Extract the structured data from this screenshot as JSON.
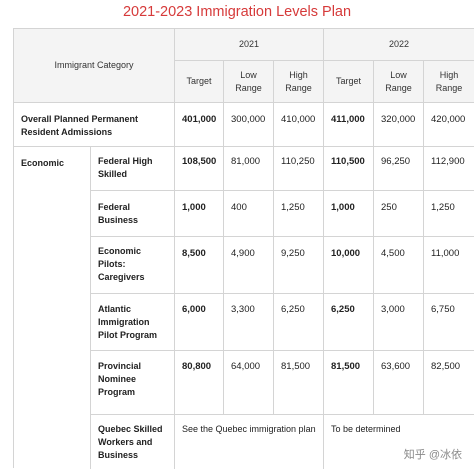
{
  "title": "2021-2023 Immigration Levels Plan",
  "header": {
    "category": "Immigrant Category",
    "year_2021": "2021",
    "year_2022": "2022",
    "target": "Target",
    "low": "Low Range",
    "high": "High Range"
  },
  "overall": {
    "label": "Overall Planned Permanent Resident Admissions",
    "t2021": "401,000",
    "l2021": "300,000",
    "h2021": "410,000",
    "t2022": "411,000",
    "l2022": "320,000",
    "h2022": "420,000"
  },
  "economic": {
    "group": "Economic",
    "rows": [
      {
        "label": "Federal High Skilled",
        "t2021": "108,500",
        "l2021": "81,000",
        "h2021": "110,250",
        "t2022": "110,500",
        "l2022": "96,250",
        "h2022": "112,900"
      },
      {
        "label": "Federal Business",
        "t2021": "1,000",
        "l2021": "400",
        "h2021": "1,250",
        "t2022": "1,000",
        "l2022": "250",
        "h2022": "1,250"
      },
      {
        "label": "Economic Pilots: Caregivers",
        "t2021": "8,500",
        "l2021": "4,900",
        "h2021": "9,250",
        "t2022": "10,000",
        "l2022": "4,500",
        "h2022": "11,000"
      },
      {
        "label": "Atlantic Immigration Pilot Program",
        "t2021": "6,000",
        "l2021": "3,300",
        "h2021": "6,250",
        "t2022": "6,250",
        "l2022": "3,000",
        "h2022": "6,750"
      },
      {
        "label": "Provincial Nominee Program",
        "t2021": "80,800",
        "l2021": "64,000",
        "h2021": "81,500",
        "t2022": "81,500",
        "l2022": "63,600",
        "h2022": "82,500"
      }
    ],
    "quebec": {
      "label": "Quebec Skilled Workers and Business",
      "note2021": "See the Quebec immigration plan",
      "note2022": "To be determined"
    }
  },
  "watermark": "知乎 @冰依"
}
